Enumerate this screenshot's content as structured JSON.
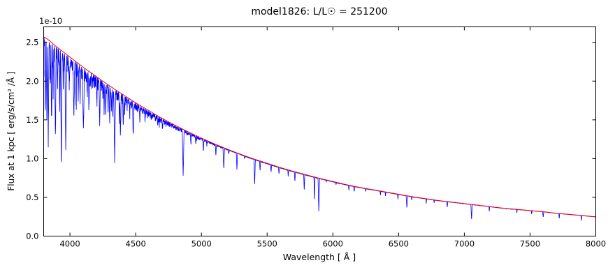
{
  "figure": {
    "title": "model1826: L/L☉ = 251200",
    "background_color": "#ffffff",
    "axes_color": "#000000",
    "x_axis": {
      "label": "Wavelength [ Å ]",
      "min": 3800,
      "max": 8000,
      "tick_values": [
        4000,
        4500,
        5000,
        5500,
        6000,
        6500,
        7000,
        7500,
        8000
      ],
      "ticks": [
        "4000",
        "4500",
        "5000",
        "5500",
        "6000",
        "6500",
        "7000",
        "7500",
        "8000"
      ]
    },
    "y_axis": {
      "label": "Flux at 1 kpc [ erg/s/cm² /Å ]",
      "offset_text": "1e-10",
      "min": 0,
      "max": 2.7,
      "tick_values": [
        0.0,
        0.5,
        1.0,
        1.5,
        2.0,
        2.5
      ],
      "ticks": [
        "0.0",
        "0.5",
        "1.0",
        "1.5",
        "2.0",
        "2.5"
      ]
    }
  },
  "chart_data": {
    "type": "line",
    "title": "model1826: L/L☉ = 251200",
    "xlabel": "Wavelength [ Å ]",
    "ylabel": "Flux at 1 kpc [ erg/s/cm² /Å ]",
    "flux_scale": "1e-10",
    "xlim": [
      3800,
      8000
    ],
    "ylim": [
      0,
      2.7
    ],
    "grid": false,
    "legend": "none",
    "series": [
      {
        "name": "observed-spectrum",
        "color": "#0000ff",
        "description": "blue stellar spectrum with absorption lines"
      },
      {
        "name": "continuum-fit",
        "color": "#ff0000",
        "description": "smooth red continuum model"
      }
    ],
    "continuum": {
      "x": [
        3800,
        3900,
        4000,
        4100,
        4200,
        4300,
        4400,
        4500,
        4600,
        4700,
        4800,
        4900,
        5000,
        5100,
        5200,
        5300,
        5400,
        5500,
        5600,
        5700,
        5800,
        5900,
        6000,
        6100,
        6200,
        6300,
        6400,
        6500,
        6600,
        6700,
        6800,
        6900,
        7000,
        7100,
        7200,
        7300,
        7400,
        7500,
        7600,
        7700,
        7800,
        7900,
        8000
      ],
      "flux": [
        2.57,
        2.44,
        2.31,
        2.18,
        2.06,
        1.94,
        1.83,
        1.72,
        1.62,
        1.52,
        1.43,
        1.345,
        1.265,
        1.19,
        1.12,
        1.055,
        0.995,
        0.94,
        0.885,
        0.835,
        0.79,
        0.745,
        0.705,
        0.665,
        0.63,
        0.6,
        0.57,
        0.54,
        0.51,
        0.485,
        0.46,
        0.44,
        0.42,
        0.4,
        0.38,
        0.36,
        0.345,
        0.33,
        0.315,
        0.295,
        0.28,
        0.265,
        0.25
      ]
    },
    "absorption_lines": [
      [
        3812,
        1.75,
        5
      ],
      [
        3824,
        1.5,
        5
      ],
      [
        3835,
        1.3,
        6
      ],
      [
        3850,
        2.05,
        4
      ],
      [
        3860,
        1.6,
        5
      ],
      [
        3872,
        1.9,
        4
      ],
      [
        3889,
        1.28,
        6
      ],
      [
        3905,
        1.95,
        4
      ],
      [
        3922,
        1.68,
        4
      ],
      [
        3934,
        0.98,
        6
      ],
      [
        3950,
        2.0,
        4
      ],
      [
        3968,
        1.12,
        7
      ],
      [
        3995,
        2.05,
        4
      ],
      [
        4030,
        1.55,
        6
      ],
      [
        4046,
        1.72,
        4
      ],
      [
        4063,
        1.85,
        4
      ],
      [
        4077,
        1.7,
        4
      ],
      [
        4102,
        1.38,
        7
      ],
      [
        4132,
        1.88,
        4
      ],
      [
        4144,
        1.7,
        4
      ],
      [
        4167,
        1.92,
        4
      ],
      [
        4205,
        1.72,
        4
      ],
      [
        4226,
        1.42,
        5
      ],
      [
        4250,
        1.78,
        4
      ],
      [
        4260,
        1.62,
        4
      ],
      [
        4272,
        1.55,
        4
      ],
      [
        4290,
        1.58,
        4
      ],
      [
        4302,
        1.48,
        5
      ],
      [
        4315,
        1.62,
        4
      ],
      [
        4326,
        1.5,
        4
      ],
      [
        4340,
        0.96,
        7
      ],
      [
        4376,
        1.48,
        4
      ],
      [
        4384,
        1.32,
        5
      ],
      [
        4405,
        1.42,
        5
      ],
      [
        4416,
        1.58,
        4
      ],
      [
        4435,
        1.68,
        4
      ],
      [
        4455,
        1.58,
        4
      ],
      [
        4481,
        1.28,
        5
      ],
      [
        4531,
        1.48,
        4
      ],
      [
        4550,
        1.58,
        4
      ],
      [
        4571,
        1.52,
        4
      ],
      [
        4590,
        1.56,
        3
      ],
      [
        4620,
        1.52,
        3
      ],
      [
        4650,
        1.48,
        4
      ],
      [
        4668,
        1.42,
        4
      ],
      [
        4703,
        1.38,
        4
      ],
      [
        4730,
        1.46,
        3
      ],
      [
        4762,
        1.42,
        3
      ],
      [
        4785,
        1.4,
        3
      ],
      [
        4861,
        0.77,
        7
      ],
      [
        4890,
        1.32,
        3
      ],
      [
        4920,
        1.18,
        4
      ],
      [
        4957,
        1.2,
        4
      ],
      [
        5015,
        1.1,
        4
      ],
      [
        5041,
        1.17,
        3
      ],
      [
        5110,
        1.04,
        4
      ],
      [
        5170,
        0.86,
        6
      ],
      [
        5208,
        1.06,
        4
      ],
      [
        5270,
        0.86,
        5
      ],
      [
        5328,
        1.0,
        4
      ],
      [
        5405,
        0.64,
        5
      ],
      [
        5446,
        0.84,
        4
      ],
      [
        5530,
        0.82,
        4
      ],
      [
        5590,
        0.8,
        4
      ],
      [
        5660,
        0.77,
        3
      ],
      [
        5711,
        0.7,
        4
      ],
      [
        5782,
        0.58,
        4
      ],
      [
        5860,
        0.45,
        4
      ],
      [
        5893,
        0.31,
        6
      ],
      [
        5950,
        0.7,
        3
      ],
      [
        6024,
        0.66,
        3
      ],
      [
        6122,
        0.59,
        4
      ],
      [
        6162,
        0.57,
        4
      ],
      [
        6250,
        0.57,
        3
      ],
      [
        6362,
        0.53,
        3
      ],
      [
        6400,
        0.51,
        3
      ],
      [
        6495,
        0.47,
        3
      ],
      [
        6563,
        0.36,
        6
      ],
      [
        6600,
        0.46,
        3
      ],
      [
        6710,
        0.42,
        3
      ],
      [
        6770,
        0.43,
        3
      ],
      [
        6870,
        0.37,
        4
      ],
      [
        7055,
        0.2,
        5
      ],
      [
        7190,
        0.32,
        3
      ],
      [
        7400,
        0.3,
        3
      ],
      [
        7512,
        0.28,
        3
      ],
      [
        7600,
        0.24,
        4
      ],
      [
        7722,
        0.22,
        3
      ],
      [
        7890,
        0.19,
        3
      ]
    ]
  }
}
